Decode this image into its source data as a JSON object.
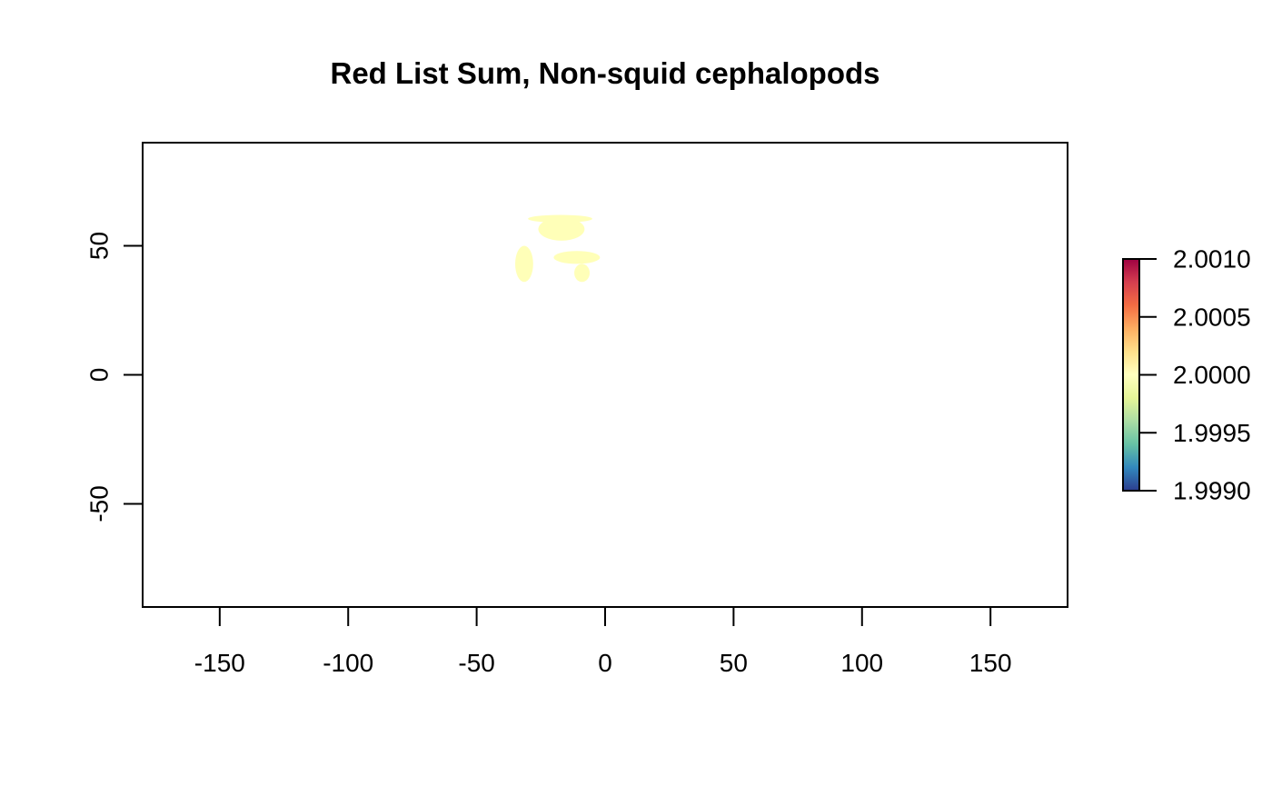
{
  "chart_data": {
    "type": "heatmap",
    "title": "Red List Sum, Non-squid cephalopods",
    "xlabel": "",
    "ylabel": "",
    "xlim": [
      -180,
      180
    ],
    "ylim": [
      -90,
      90
    ],
    "x_ticks": [
      {
        "value": -150,
        "label": "-150"
      },
      {
        "value": -100,
        "label": "-100"
      },
      {
        "value": -50,
        "label": "-50"
      },
      {
        "value": 0,
        "label": "0"
      },
      {
        "value": 50,
        "label": "50"
      },
      {
        "value": 100,
        "label": "100"
      },
      {
        "value": 150,
        "label": "150"
      }
    ],
    "y_ticks": [
      {
        "value": -50,
        "label": "-50"
      },
      {
        "value": 0,
        "label": "0"
      },
      {
        "value": 50,
        "label": "50"
      }
    ],
    "legend": {
      "placement": "right",
      "range": [
        1.999,
        2.001
      ],
      "ticks": [
        {
          "value": 2.001,
          "label": "2.0010"
        },
        {
          "value": 2.0005,
          "label": "2.0005"
        },
        {
          "value": 2.0,
          "label": "2.0000"
        },
        {
          "value": 1.9995,
          "label": "1.9995"
        },
        {
          "value": 1.999,
          "label": "1.9990"
        }
      ],
      "colors": [
        "#2c3d8f",
        "#3288bd",
        "#66c2a5",
        "#abdda4",
        "#e6f598",
        "#ffffbf",
        "#fee08b",
        "#fdae61",
        "#f46d43",
        "#d53e4f",
        "#9e0142"
      ]
    },
    "cell_value": 2.0,
    "cell_color": "#ffffb8",
    "regions": [
      {
        "value": 2.0,
        "lon_range": [
          -30,
          -5
        ],
        "lat_range": [
          59,
          62
        ]
      },
      {
        "value": 2.0,
        "lon_range": [
          -26,
          -8
        ],
        "lat_range": [
          52,
          61
        ]
      },
      {
        "value": 2.0,
        "lon_range": [
          -35,
          -28
        ],
        "lat_range": [
          36,
          50
        ]
      },
      {
        "value": 2.0,
        "lon_range": [
          -20,
          -2
        ],
        "lat_range": [
          43,
          48
        ]
      },
      {
        "value": 2.0,
        "lon_range": [
          -12,
          -6
        ],
        "lat_range": [
          36,
          43
        ]
      }
    ]
  }
}
